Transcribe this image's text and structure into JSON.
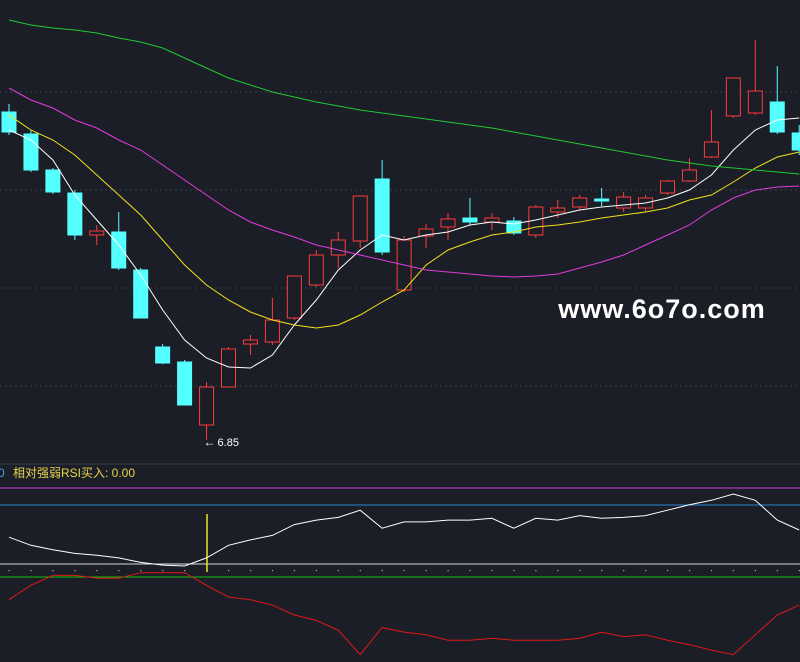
{
  "watermark": "www.6o7o.com",
  "chart_data": [
    {
      "type": "candlestick",
      "up_color": "#ff3b3b",
      "down_color": "#54ffff",
      "ylim": [
        6.65,
        11.25
      ],
      "candles": [
        {
          "open": 10.13,
          "high": 10.21,
          "low": 9.9,
          "close": 9.93
        },
        {
          "open": 9.91,
          "high": 9.95,
          "low": 9.53,
          "close": 9.55
        },
        {
          "open": 9.55,
          "high": 9.57,
          "low": 9.31,
          "close": 9.33
        },
        {
          "open": 9.32,
          "high": 9.35,
          "low": 8.85,
          "close": 8.9
        },
        {
          "open": 8.9,
          "high": 9.0,
          "low": 8.8,
          "close": 8.94
        },
        {
          "open": 8.93,
          "high": 9.13,
          "low": 8.55,
          "close": 8.57
        },
        {
          "open": 8.55,
          "high": 8.57,
          "low": 8.07,
          "close": 8.07
        },
        {
          "open": 7.78,
          "high": 7.81,
          "low": 7.61,
          "close": 7.62
        },
        {
          "open": 7.63,
          "high": 7.65,
          "low": 7.2,
          "close": 7.2
        },
        {
          "open": 7.0,
          "high": 7.43,
          "low": 6.85,
          "close": 7.38
        },
        {
          "open": 7.38,
          "high": 7.78,
          "low": 7.38,
          "close": 7.76
        },
        {
          "open": 7.81,
          "high": 7.9,
          "low": 7.7,
          "close": 7.85
        },
        {
          "open": 7.83,
          "high": 8.27,
          "low": 7.8,
          "close": 8.05
        },
        {
          "open": 8.07,
          "high": 8.49,
          "low": 8.05,
          "close": 8.49
        },
        {
          "open": 8.4,
          "high": 8.75,
          "low": 8.38,
          "close": 8.7
        },
        {
          "open": 8.7,
          "high": 8.93,
          "low": 8.57,
          "close": 8.85
        },
        {
          "open": 8.84,
          "high": 9.29,
          "low": 8.77,
          "close": 9.29
        },
        {
          "open": 9.46,
          "high": 9.65,
          "low": 8.7,
          "close": 8.73
        },
        {
          "open": 8.35,
          "high": 8.89,
          "low": 8.33,
          "close": 8.85
        },
        {
          "open": 8.89,
          "high": 9.01,
          "low": 8.77,
          "close": 8.96
        },
        {
          "open": 8.98,
          "high": 9.12,
          "low": 8.85,
          "close": 9.06
        },
        {
          "open": 9.07,
          "high": 9.27,
          "low": 9.0,
          "close": 9.03
        },
        {
          "open": 9.03,
          "high": 9.12,
          "low": 8.95,
          "close": 9.07
        },
        {
          "open": 9.04,
          "high": 9.08,
          "low": 8.9,
          "close": 8.92
        },
        {
          "open": 8.9,
          "high": 9.2,
          "low": 8.87,
          "close": 9.18
        },
        {
          "open": 9.13,
          "high": 9.25,
          "low": 9.07,
          "close": 9.17
        },
        {
          "open": 9.18,
          "high": 9.3,
          "low": 9.15,
          "close": 9.27
        },
        {
          "open": 9.26,
          "high": 9.37,
          "low": 9.19,
          "close": 9.24
        },
        {
          "open": 9.17,
          "high": 9.33,
          "low": 9.13,
          "close": 9.28
        },
        {
          "open": 9.17,
          "high": 9.3,
          "low": 9.13,
          "close": 9.27
        },
        {
          "open": 9.32,
          "high": 9.45,
          "low": 9.3,
          "close": 9.44
        },
        {
          "open": 9.44,
          "high": 9.67,
          "low": 9.43,
          "close": 9.55
        },
        {
          "open": 9.68,
          "high": 10.15,
          "low": 9.67,
          "close": 9.83
        },
        {
          "open": 10.09,
          "high": 10.47,
          "low": 10.07,
          "close": 10.47
        },
        {
          "open": 10.12,
          "high": 10.85,
          "low": 10.1,
          "close": 10.34
        },
        {
          "open": 10.23,
          "high": 10.59,
          "low": 9.91,
          "close": 9.93
        },
        {
          "open": 9.92,
          "high": 10.0,
          "low": 9.7,
          "close": 9.75
        }
      ],
      "annotation_candle": 9,
      "series": [
        {
          "color": "#ffffff",
          "values": [
            9.95,
            9.85,
            9.65,
            9.3,
            9.05,
            8.8,
            8.5,
            8.15,
            7.85,
            7.67,
            7.58,
            7.57,
            7.7,
            8.0,
            8.25,
            8.55,
            8.75,
            8.9,
            8.85,
            8.9,
            8.93,
            9.0,
            9.03,
            9.01,
            9.05,
            9.1,
            9.15,
            9.18,
            9.2,
            9.22,
            9.27,
            9.35,
            9.5,
            9.75,
            9.95,
            10.05,
            10.07
          ]
        },
        {
          "color": "#f2e21c",
          "values": [
            10.1,
            9.95,
            9.85,
            9.7,
            9.5,
            9.3,
            9.1,
            8.85,
            8.6,
            8.4,
            8.25,
            8.13,
            8.05,
            8.0,
            7.97,
            8.0,
            8.1,
            8.23,
            8.35,
            8.6,
            8.75,
            8.83,
            8.9,
            8.93,
            8.98,
            9.0,
            9.03,
            9.07,
            9.1,
            9.13,
            9.17,
            9.25,
            9.3,
            9.43,
            9.57,
            9.68,
            9.73
          ]
        },
        {
          "color": "#e03ce0",
          "values": [
            10.37,
            10.25,
            10.17,
            10.05,
            9.97,
            9.85,
            9.75,
            9.6,
            9.45,
            9.3,
            9.15,
            9.03,
            8.95,
            8.88,
            8.8,
            8.75,
            8.7,
            8.65,
            8.6,
            8.55,
            8.53,
            8.51,
            8.49,
            8.48,
            8.49,
            8.51,
            8.57,
            8.63,
            8.7,
            8.8,
            8.9,
            9.0,
            9.15,
            9.27,
            9.35,
            9.38,
            9.39
          ]
        },
        {
          "color": "#22c832",
          "values": [
            11.05,
            11.0,
            10.97,
            10.95,
            10.92,
            10.87,
            10.83,
            10.77,
            10.67,
            10.57,
            10.47,
            10.4,
            10.33,
            10.28,
            10.23,
            10.19,
            10.15,
            10.12,
            10.09,
            10.06,
            10.03,
            10.0,
            9.97,
            9.93,
            9.89,
            9.85,
            9.81,
            9.77,
            9.73,
            9.69,
            9.65,
            9.62,
            9.59,
            9.57,
            9.55,
            9.53,
            9.51
          ]
        }
      ]
    },
    {
      "type": "line",
      "title": "相对强弱RSI买入: 0.00",
      "annotations": [
        "0"
      ],
      "ylim": [
        0,
        100
      ],
      "y2lim": [
        0,
        100
      ],
      "series": [
        {
          "color": "#ffffff",
          "values": [
            42,
            33,
            28,
            24,
            22,
            19,
            14,
            11,
            10,
            19,
            33,
            39,
            44,
            56,
            61,
            64,
            72,
            52,
            59,
            59,
            61,
            61,
            63,
            52,
            63,
            61,
            66,
            63,
            64,
            66,
            72,
            78,
            83,
            90,
            83,
            61,
            50
          ]
        },
        {
          "color": "#e01818",
          "axis": "y2",
          "values": [
            67,
            83,
            94,
            94,
            91,
            91,
            97,
            97,
            97,
            83,
            70,
            67,
            61,
            50,
            44,
            33,
            6,
            36,
            31,
            28,
            22,
            22,
            24,
            22,
            22,
            22,
            24,
            31,
            26,
            28,
            22,
            17,
            11,
            6,
            28,
            50,
            61
          ]
        }
      ]
    }
  ]
}
